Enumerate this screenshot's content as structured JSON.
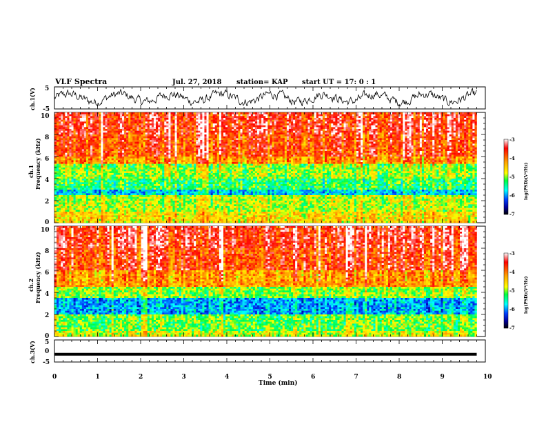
{
  "header": {
    "title": "VLF Spectra",
    "date": "Jul. 27, 2018",
    "station": "station= KAP",
    "start": "start  UT =   17: 0  : 1"
  },
  "panels": {
    "ch1_wave_label": "ch.1(V)",
    "ch1_spec_label_1": "ch.1",
    "ch1_spec_label_2": "Frequency (kHz)",
    "ch2_spec_label_1": "ch.2",
    "ch2_spec_label_2": "Frequency (kHz)",
    "ch3_wave_label": "ch.3(V)"
  },
  "colorbar": {
    "label": "log(PSD)(V²/Hz)",
    "ticks": [
      "-3",
      "-4",
      "-5",
      "-6",
      "-7"
    ],
    "colors": [
      "#ffffff",
      "#ff0000",
      "#ffa000",
      "#ffff00",
      "#00ff40",
      "#00ffff",
      "#0040ff",
      "#0000a0",
      "#000000"
    ]
  },
  "chart_data": [
    {
      "type": "line",
      "name": "ch.1 waveform",
      "ylabel": "ch.1(V)",
      "ylim": [
        -5,
        5
      ],
      "yticks": [
        "5",
        "-5"
      ],
      "xlim": [
        0,
        10
      ],
      "note_values": "noisy waveform oscillating between about -3 and 3 V over 0 to 9.8 min"
    },
    {
      "type": "heatmap",
      "name": "ch.1 spectrogram",
      "ylabel": "Frequency (kHz)",
      "ylim": [
        0,
        10
      ],
      "yticks": [
        "0",
        "2",
        "4",
        "6",
        "8",
        "10"
      ],
      "xlim": [
        0,
        9.8
      ],
      "color_scale": "log(PSD) from -7 to -3 V²/Hz",
      "band_levels": [
        {
          "freq_range": [
            8,
            10
          ],
          "level": -3.6
        },
        {
          "freq_range": [
            6,
            8
          ],
          "level": -3.8
        },
        {
          "freq_range": [
            5.3,
            6
          ],
          "level": -4.2
        },
        {
          "freq_range": [
            4,
            5.3
          ],
          "level": -5.0
        },
        {
          "freq_range": [
            3,
            4
          ],
          "level": -5.3
        },
        {
          "freq_range": [
            2.5,
            3
          ],
          "level": -5.8
        },
        {
          "freq_range": [
            1,
            2.5
          ],
          "level": -4.9
        },
        {
          "freq_range": [
            0,
            1
          ],
          "level": -4.6
        }
      ]
    },
    {
      "type": "heatmap",
      "name": "ch.2 spectrogram",
      "ylabel": "Frequency (kHz)",
      "ylim": [
        0,
        10
      ],
      "yticks": [
        "0",
        "2",
        "4",
        "6",
        "8",
        "10"
      ],
      "xlim": [
        0,
        9.8
      ],
      "color_scale": "log(PSD) from -7 to -3 V²/Hz",
      "band_levels": [
        {
          "freq_range": [
            8,
            10
          ],
          "level": -3.5
        },
        {
          "freq_range": [
            6,
            8
          ],
          "level": -3.7
        },
        {
          "freq_range": [
            4.5,
            6
          ],
          "level": -4.2
        },
        {
          "freq_range": [
            3.5,
            4.5
          ],
          "level": -5.0
        },
        {
          "freq_range": [
            2,
            3.5
          ],
          "level": -5.9
        },
        {
          "freq_range": [
            0.5,
            2
          ],
          "level": -5.1
        },
        {
          "freq_range": [
            0,
            0.5
          ],
          "level": -4.8
        }
      ]
    },
    {
      "type": "line",
      "name": "ch.3 waveform",
      "ylabel": "ch.3(V)",
      "ylim": [
        -5,
        5
      ],
      "yticks": [
        "5",
        "0",
        "-5"
      ],
      "xlim": [
        0,
        10
      ],
      "x": [
        0,
        9.8
      ],
      "y": [
        -1.5,
        -1.5
      ]
    }
  ],
  "xaxis": {
    "label": "Time (min)",
    "ticks": [
      "0",
      "1",
      "2",
      "3",
      "4",
      "5",
      "6",
      "7",
      "8",
      "9",
      "10"
    ],
    "range": [
      0,
      10
    ]
  }
}
